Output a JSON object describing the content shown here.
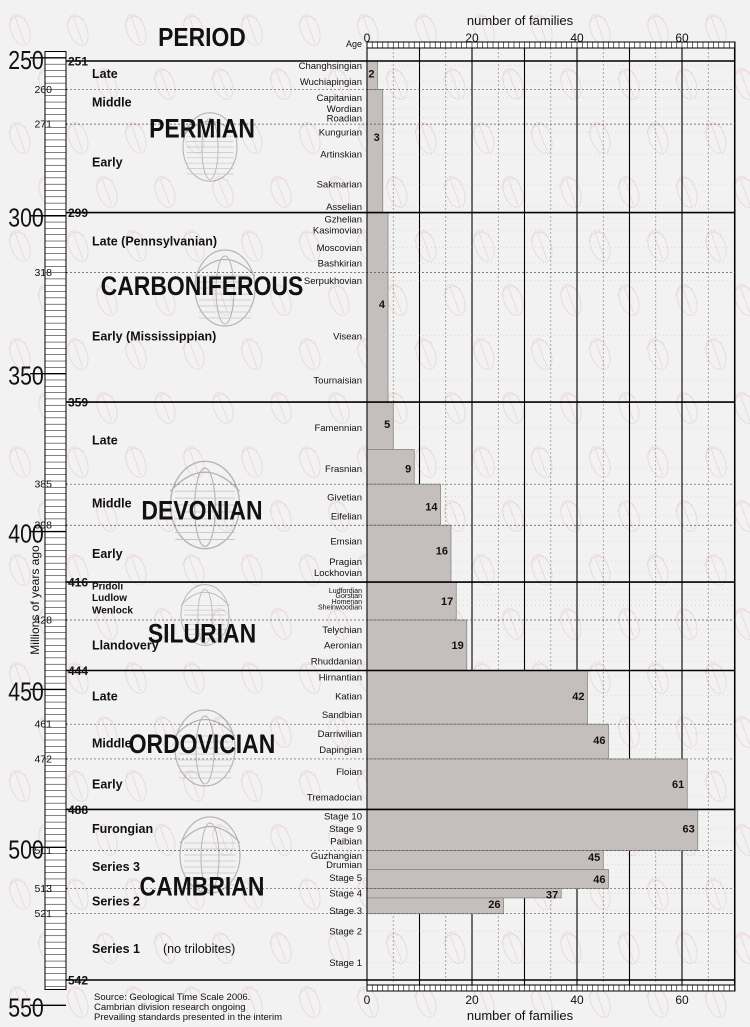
{
  "chart_data": {
    "type": "bar",
    "orientation": "horizontal",
    "title": "",
    "xlabel": "number of families",
    "ylabel": "Millions of years ago",
    "age_header": "Age",
    "xlim": [
      0,
      70
    ],
    "ylim": [
      550,
      245
    ],
    "x_ticks": [
      "0",
      "20",
      "40",
      "60"
    ],
    "y_ticks": [
      "250",
      "300",
      "350",
      "400",
      "450",
      "500",
      "550"
    ],
    "grid": true,
    "column_header": "PERIOD",
    "periods": [
      {
        "name": "PERMIAN",
        "start": 299,
        "end": 251
      },
      {
        "name": "CARBONIFEROUS",
        "start": 359,
        "end": 299
      },
      {
        "name": "DEVONIAN",
        "start": 416,
        "end": 359
      },
      {
        "name": "SILURIAN",
        "start": 444,
        "end": 416
      },
      {
        "name": "ORDOVICIAN",
        "start": 488,
        "end": 444
      },
      {
        "name": "CAMBRIAN",
        "start": 542,
        "end": 488
      }
    ],
    "period_boundaries": [
      "251",
      "299",
      "359",
      "416",
      "444",
      "488",
      "542"
    ],
    "epoch_boundaries": [
      "260",
      "271",
      "318",
      "385",
      "398",
      "428",
      "461",
      "472",
      "501",
      "513",
      "521"
    ],
    "epochs": [
      {
        "name": "Late",
        "age": 255
      },
      {
        "name": "Middle",
        "age": 264
      },
      {
        "name": "Early",
        "age": 283
      },
      {
        "name": "Late (Pennsylvanian)",
        "age": 308
      },
      {
        "name": "Early (Mississippian)",
        "age": 338
      },
      {
        "name": "Late",
        "age": 371
      },
      {
        "name": "Middle",
        "age": 391
      },
      {
        "name": "Early",
        "age": 407
      },
      {
        "name": "Pridoli",
        "age": 417
      },
      {
        "name": "Ludlow",
        "age": 420.5
      },
      {
        "name": "Wenlock",
        "age": 424.5
      },
      {
        "name": "Llandovery",
        "age": 436
      },
      {
        "name": "Late",
        "age": 452
      },
      {
        "name": "Middle",
        "age": 467
      },
      {
        "name": "Early",
        "age": 480
      },
      {
        "name": "Furongian",
        "age": 494
      },
      {
        "name": "Series 3",
        "age": 506
      },
      {
        "name": "Series 2",
        "age": 517
      },
      {
        "name": "Series 1",
        "age": 532
      }
    ],
    "note_no_trilobites": "(no trilobites)",
    "stages": [
      {
        "name": "Changhsingian",
        "age": 252.5
      },
      {
        "name": "Wuchiapingian",
        "age": 257.5
      },
      {
        "name": "Capitanian",
        "age": 262.5
      },
      {
        "name": "Wordian",
        "age": 266
      },
      {
        "name": "Roadian",
        "age": 269
      },
      {
        "name": "Kungurian",
        "age": 273.5
      },
      {
        "name": "Artinskian",
        "age": 280.5
      },
      {
        "name": "Sakmarian",
        "age": 290
      },
      {
        "name": "Asselian",
        "age": 297
      },
      {
        "name": "Gzhelian",
        "age": 301
      },
      {
        "name": "Kasimovian",
        "age": 304.5
      },
      {
        "name": "Moscovian",
        "age": 310
      },
      {
        "name": "Bashkirian",
        "age": 315
      },
      {
        "name": "Serpukhovian",
        "age": 320.5
      },
      {
        "name": "Visean",
        "age": 338
      },
      {
        "name": "Tournaisian",
        "age": 352
      },
      {
        "name": "Famennian",
        "age": 367
      },
      {
        "name": "Frasnian",
        "age": 380
      },
      {
        "name": "Givetian",
        "age": 389
      },
      {
        "name": "Eifelian",
        "age": 395
      },
      {
        "name": "Emsian",
        "age": 403
      },
      {
        "name": "Pragian",
        "age": 409.5
      },
      {
        "name": "Lockhovian",
        "age": 413
      },
      {
        "name": "Ludfordian",
        "age": 418.3
      },
      {
        "name": "Gorstian",
        "age": 420
      },
      {
        "name": "Homerian",
        "age": 421.8
      },
      {
        "name": "Sheinwoodian",
        "age": 423.5
      },
      {
        "name": "Telychian",
        "age": 431
      },
      {
        "name": "Aeronian",
        "age": 436
      },
      {
        "name": "Rhuddanian",
        "age": 441
      },
      {
        "name": "Hirnantian",
        "age": 446
      },
      {
        "name": "Katian",
        "age": 452
      },
      {
        "name": "Sandbian",
        "age": 458
      },
      {
        "name": "Darriwilian",
        "age": 464
      },
      {
        "name": "Dapingian",
        "age": 469
      },
      {
        "name": "Floian",
        "age": 476
      },
      {
        "name": "Tremadocian",
        "age": 484
      },
      {
        "name": "Stage 10",
        "age": 490
      },
      {
        "name": "Stage 9",
        "age": 494
      },
      {
        "name": "Paibian",
        "age": 498
      },
      {
        "name": "Guzhangian",
        "age": 502.5
      },
      {
        "name": "Drumian",
        "age": 505.5
      },
      {
        "name": "Stage 5",
        "age": 509.5
      },
      {
        "name": "Stage 4",
        "age": 514.5
      },
      {
        "name": "Stage 3",
        "age": 520
      },
      {
        "name": "Stage 2",
        "age": 526.5
      },
      {
        "name": "Stage 1",
        "age": 536.5
      }
    ],
    "bars": [
      {
        "label": "2",
        "value": 2,
        "start": 260,
        "end": 251,
        "label_age": 255
      },
      {
        "label": "3",
        "value": 3,
        "start": 299,
        "end": 260,
        "label_age": 275
      },
      {
        "label": "4",
        "value": 4,
        "start": 359,
        "end": 299,
        "label_age": 328
      },
      {
        "label": "5",
        "value": 5,
        "start": 374,
        "end": 359,
        "label_age": 366
      },
      {
        "label": "9",
        "value": 9,
        "start": 385,
        "end": 374,
        "label_age": 380
      },
      {
        "label": "14",
        "value": 14,
        "start": 398,
        "end": 385,
        "label_age": 392
      },
      {
        "label": "16",
        "value": 16,
        "start": 416,
        "end": 398,
        "label_age": 406
      },
      {
        "label": "17",
        "value": 17,
        "start": 428,
        "end": 416,
        "label_age": 422
      },
      {
        "label": "19",
        "value": 19,
        "start": 444,
        "end": 428,
        "label_age": 436
      },
      {
        "label": "42",
        "value": 42,
        "start": 461,
        "end": 444,
        "label_age": 452
      },
      {
        "label": "46",
        "value": 46,
        "start": 472,
        "end": 461,
        "label_age": 466
      },
      {
        "label": "61",
        "value": 61,
        "start": 488,
        "end": 472,
        "label_age": 480
      },
      {
        "label": "63",
        "value": 63,
        "start": 501,
        "end": 488,
        "label_age": 494
      },
      {
        "label": "45",
        "value": 45,
        "start": 507,
        "end": 501,
        "label_age": 503
      },
      {
        "label": "46",
        "value": 46,
        "start": 513,
        "end": 507,
        "label_age": 510
      },
      {
        "label": "37",
        "value": 37,
        "start": 516,
        "end": 513,
        "label_age": 515
      },
      {
        "label": "26",
        "value": 26,
        "start": 521,
        "end": 516,
        "label_age": 518
      }
    ],
    "source_notes": [
      "Source: Geological Time Scale 2006.",
      "Cambrian division research ongoing",
      "Prevailing standards presented in the interim"
    ],
    "colors": {
      "bar_fill": "#c4bfbc",
      "bar_edge": "#8a8584",
      "background": "#f3f2f2",
      "text": "#111111",
      "grid": "#000000"
    }
  }
}
